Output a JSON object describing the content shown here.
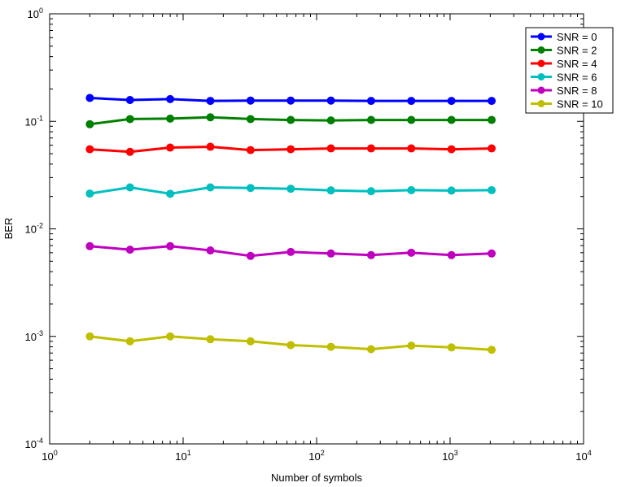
{
  "chart_data": {
    "type": "line",
    "title": "",
    "xlabel": "Number of symbols",
    "ylabel": "BER",
    "x_scale": "log",
    "y_scale": "log",
    "xlim": [
      1,
      10000
    ],
    "ylim": [
      0.0001,
      1
    ],
    "grid": false,
    "legend_position": "top-right",
    "x_ticks": [
      {
        "base": "10",
        "exp": "0",
        "value": 1
      },
      {
        "base": "10",
        "exp": "1",
        "value": 10
      },
      {
        "base": "10",
        "exp": "2",
        "value": 100
      },
      {
        "base": "10",
        "exp": "3",
        "value": 1000
      },
      {
        "base": "10",
        "exp": "4",
        "value": 10000
      }
    ],
    "y_ticks": [
      {
        "base": "10",
        "exp": "-4",
        "value": 0.0001
      },
      {
        "base": "10",
        "exp": "-3",
        "value": 0.001
      },
      {
        "base": "10",
        "exp": "-2",
        "value": 0.01
      },
      {
        "base": "10",
        "exp": "-1",
        "value": 0.1
      },
      {
        "base": "10",
        "exp": "0",
        "value": 1
      }
    ],
    "x": [
      2,
      4,
      8,
      16,
      32,
      64,
      128,
      256,
      512,
      1024,
      2048
    ],
    "series": [
      {
        "name": "SNR = 0",
        "color": "#0000ff",
        "values": [
          0.165,
          0.158,
          0.161,
          0.155,
          0.156,
          0.156,
          0.156,
          0.155,
          0.155,
          0.155,
          0.155
        ]
      },
      {
        "name": "SNR = 2",
        "color": "#008000",
        "values": [
          0.094,
          0.105,
          0.106,
          0.109,
          0.105,
          0.103,
          0.102,
          0.103,
          0.103,
          0.103,
          0.103
        ]
      },
      {
        "name": "SNR = 4",
        "color": "#ff0000",
        "values": [
          0.055,
          0.052,
          0.057,
          0.058,
          0.054,
          0.055,
          0.056,
          0.056,
          0.056,
          0.055,
          0.056
        ]
      },
      {
        "name": "SNR = 6",
        "color": "#00bfbf",
        "values": [
          0.0213,
          0.0243,
          0.0212,
          0.0243,
          0.024,
          0.0236,
          0.0228,
          0.0224,
          0.0229,
          0.0227,
          0.0229
        ]
      },
      {
        "name": "SNR = 8",
        "color": "#bf00bf",
        "values": [
          0.0069,
          0.0064,
          0.0069,
          0.0063,
          0.0056,
          0.0061,
          0.0059,
          0.0057,
          0.006,
          0.0057,
          0.0059
        ]
      },
      {
        "name": "SNR = 10",
        "color": "#bfbf00",
        "values": [
          0.001,
          0.0009,
          0.001,
          0.00094,
          0.0009,
          0.00083,
          0.0008,
          0.00076,
          0.00082,
          0.00079,
          0.00075
        ]
      }
    ]
  }
}
